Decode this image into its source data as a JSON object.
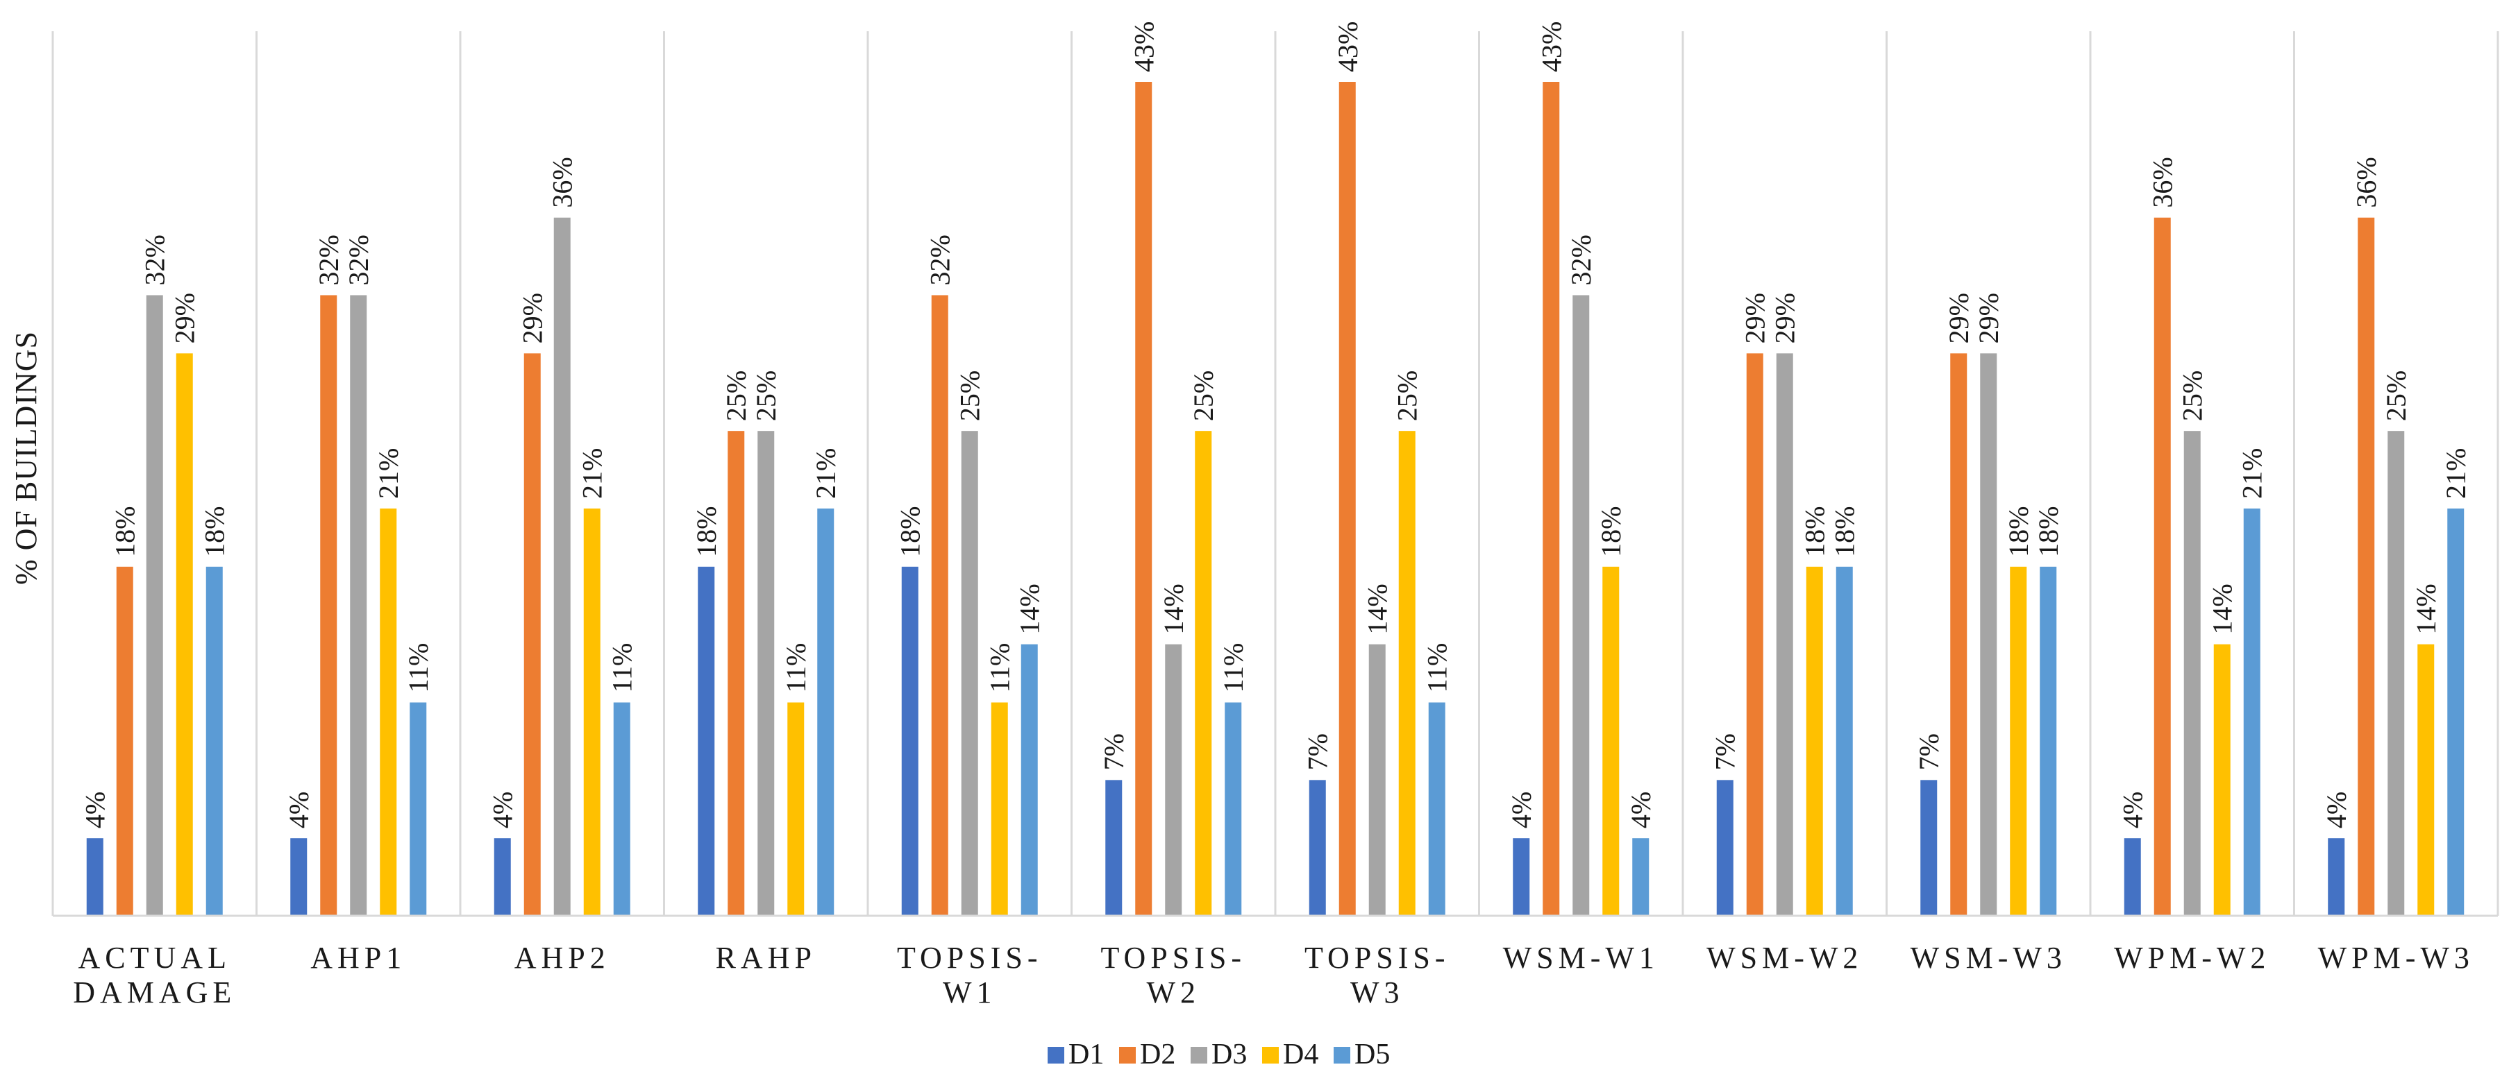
{
  "chart_data": {
    "type": "bar",
    "title": "",
    "xlabel": "",
    "ylabel": "% OF BUILDINGS",
    "ylim": [
      0,
      45
    ],
    "grid": "vertical category separators",
    "legend_position": "bottom-center",
    "categories": [
      [
        "ACTUAL",
        "DAMAGE"
      ],
      [
        "AHP1"
      ],
      [
        "AHP2"
      ],
      [
        "RAHP"
      ],
      [
        "TOPSIS-",
        "W1"
      ],
      [
        "TOPSIS-",
        "W2"
      ],
      [
        "TOPSIS-",
        "W3"
      ],
      [
        "WSM-W1"
      ],
      [
        "WSM-W2"
      ],
      [
        "WSM-W3"
      ],
      [
        "WPM-W2"
      ],
      [
        "WPM-W3"
      ]
    ],
    "series": [
      {
        "name": "D1",
        "color": "#4472C4",
        "values": [
          4,
          4,
          4,
          18,
          18,
          7,
          7,
          4,
          7,
          7,
          4,
          4
        ]
      },
      {
        "name": "D2",
        "color": "#ED7D31",
        "values": [
          18,
          32,
          29,
          25,
          32,
          43,
          43,
          43,
          29,
          29,
          36,
          36
        ]
      },
      {
        "name": "D3",
        "color": "#A5A5A5",
        "values": [
          32,
          32,
          36,
          25,
          25,
          14,
          14,
          32,
          29,
          29,
          25,
          25
        ]
      },
      {
        "name": "D4",
        "color": "#FFC000",
        "values": [
          29,
          21,
          21,
          11,
          11,
          25,
          25,
          18,
          18,
          18,
          14,
          14
        ]
      },
      {
        "name": "D5",
        "color": "#5B9BD5",
        "values": [
          18,
          11,
          11,
          21,
          14,
          11,
          11,
          4,
          18,
          18,
          21,
          21
        ]
      }
    ],
    "value_suffix": "%"
  }
}
